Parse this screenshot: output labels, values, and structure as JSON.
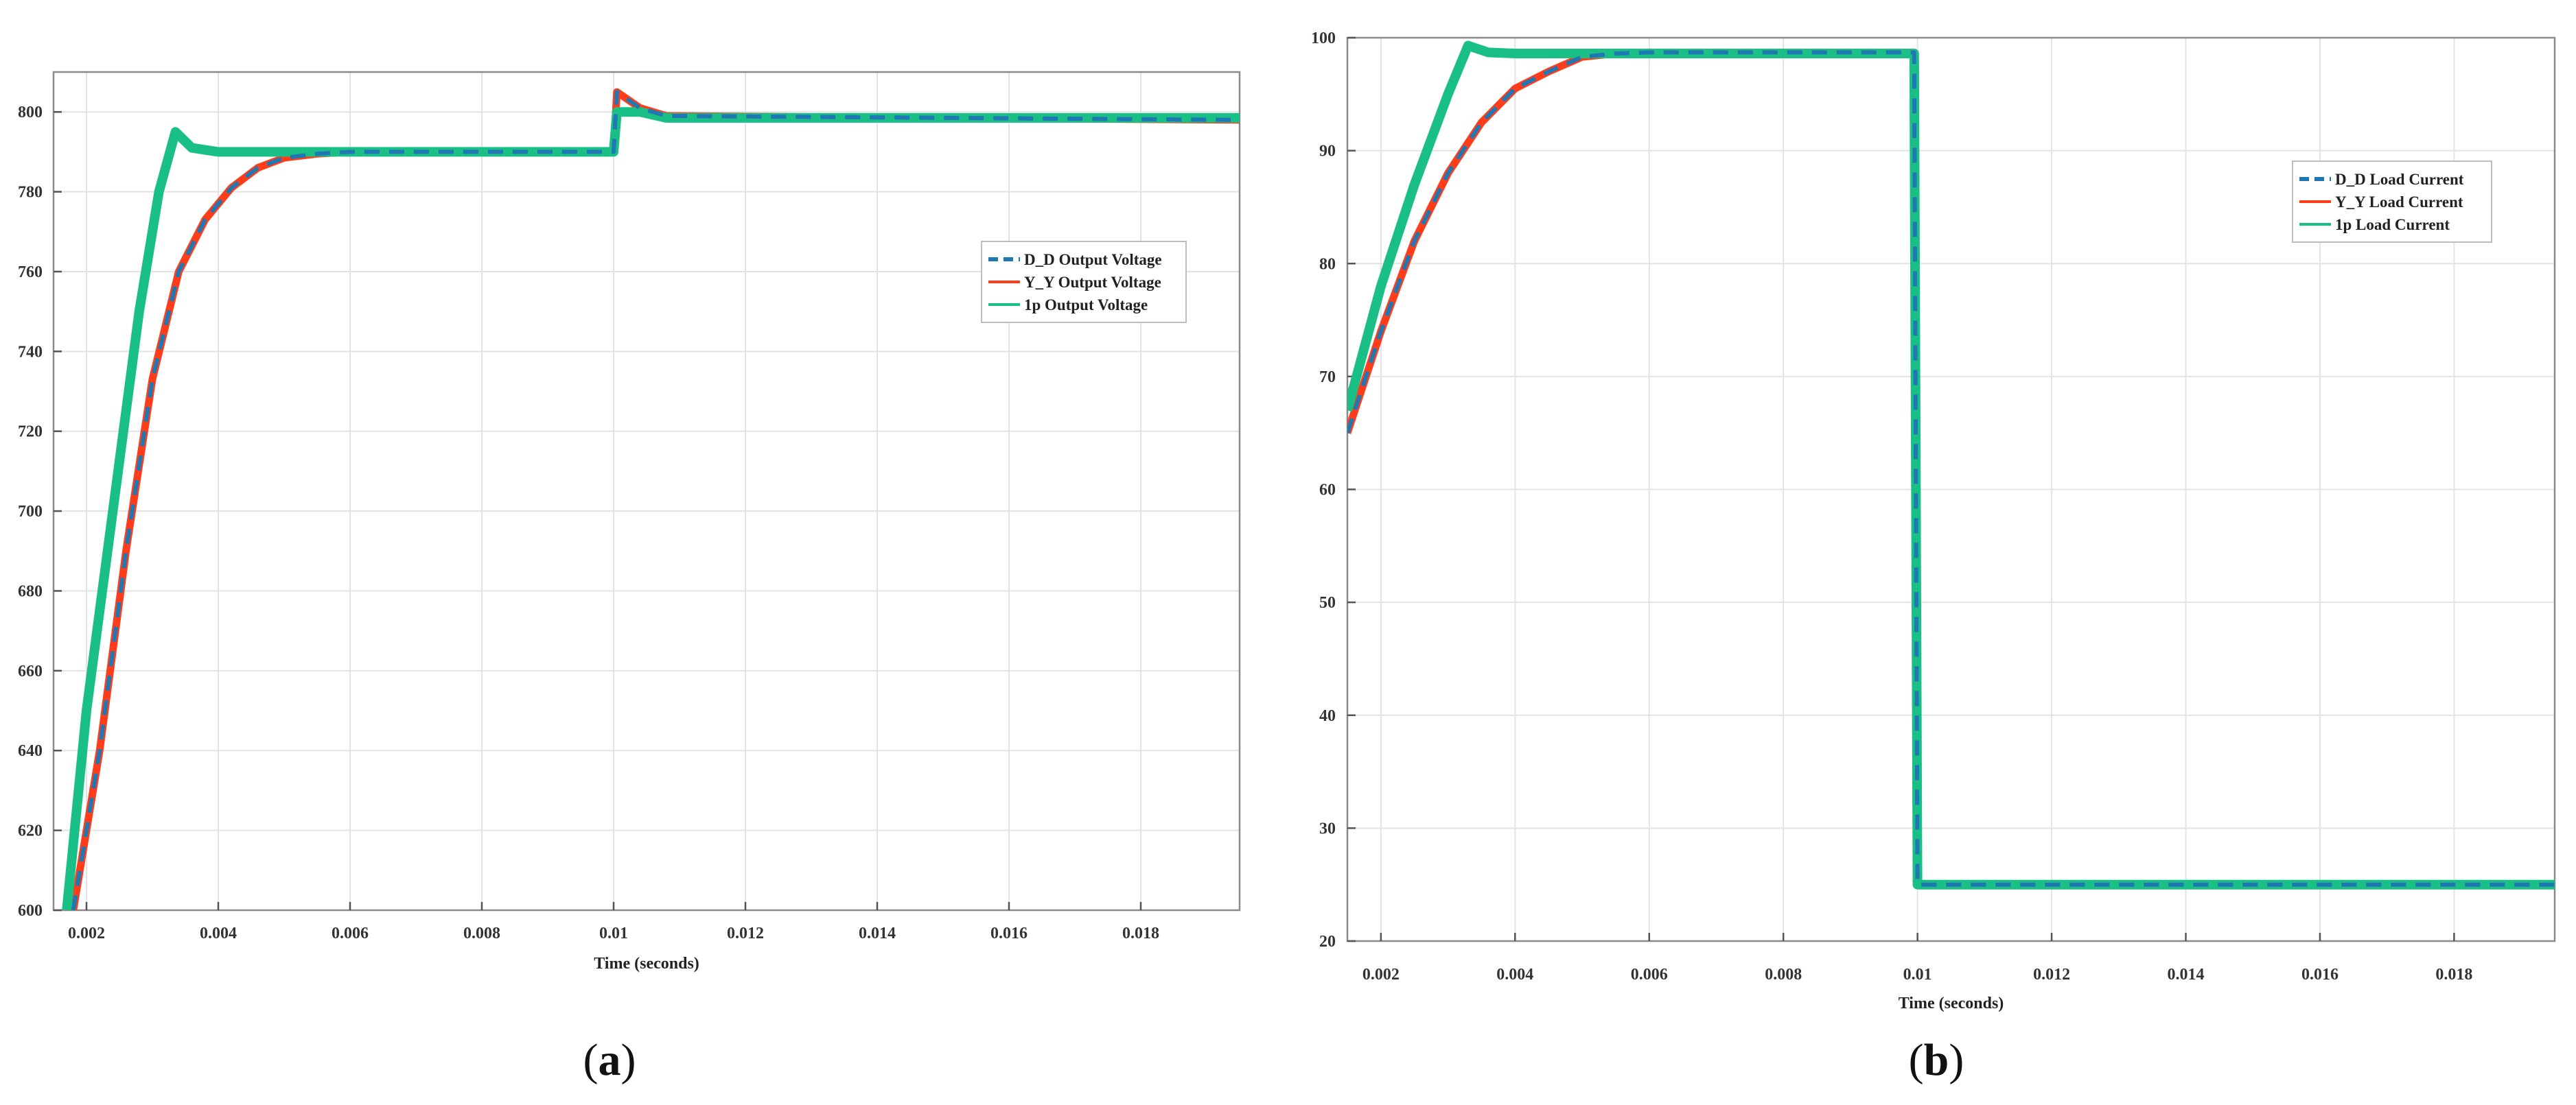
{
  "figure": {
    "label_a": "a",
    "label_b": "b"
  },
  "colors": {
    "dd": "#1f77b4",
    "yy": "#ff3d1a",
    "onep": "#1abf86",
    "grid": "#e3e3e3",
    "axis": "#8a8a8a"
  },
  "chart_data": [
    {
      "type": "line",
      "panel": "a",
      "title": "",
      "xlabel": "Time (seconds)",
      "ylabel": "",
      "xlim": [
        0.0015,
        0.0195
      ],
      "ylim": [
        600,
        810
      ],
      "xticks": [
        0.002,
        0.004,
        0.006,
        0.008,
        0.01,
        0.012,
        0.014,
        0.016,
        0.018
      ],
      "xtick_labels": [
        "0.002",
        "0.004",
        "0.006",
        "0.008",
        "0.01",
        "0.012",
        "0.014",
        "0.016",
        "0.018"
      ],
      "yticks": [
        600,
        620,
        640,
        660,
        680,
        700,
        720,
        740,
        760,
        780,
        800
      ],
      "ytick_labels": [
        "600",
        "620",
        "640",
        "660",
        "680",
        "700",
        "720",
        "740",
        "760",
        "780",
        "800"
      ],
      "grid": true,
      "legend_position": "right",
      "series": [
        {
          "name": "D_D Output Voltage",
          "style": "dashed",
          "points": [
            [
              0.0018,
              600
            ],
            [
              0.0022,
              640
            ],
            [
              0.0026,
              690
            ],
            [
              0.003,
              733
            ],
            [
              0.0034,
              760
            ],
            [
              0.0038,
              773
            ],
            [
              0.0042,
              781
            ],
            [
              0.0046,
              786
            ],
            [
              0.005,
              788.5
            ],
            [
              0.0055,
              789.5
            ],
            [
              0.006,
              790
            ],
            [
              0.008,
              790
            ],
            [
              0.01,
              790
            ],
            [
              0.01005,
              805
            ],
            [
              0.0104,
              801
            ],
            [
              0.0108,
              799
            ],
            [
              0.0195,
              798
            ]
          ]
        },
        {
          "name": "Y_Y Output Voltage",
          "style": "solid",
          "points": [
            [
              0.0018,
              600
            ],
            [
              0.0022,
              640
            ],
            [
              0.0026,
              690
            ],
            [
              0.003,
              733
            ],
            [
              0.0034,
              760
            ],
            [
              0.0038,
              773
            ],
            [
              0.0042,
              781
            ],
            [
              0.0046,
              786
            ],
            [
              0.005,
              788.5
            ],
            [
              0.0055,
              789.5
            ],
            [
              0.006,
              790
            ],
            [
              0.008,
              790
            ],
            [
              0.01,
              790
            ],
            [
              0.01005,
              805
            ],
            [
              0.0104,
              801
            ],
            [
              0.0108,
              799
            ],
            [
              0.0195,
              798
            ]
          ]
        },
        {
          "name": "1p Output Voltage",
          "style": "solid",
          "points": [
            [
              0.0017,
              600
            ],
            [
              0.002,
              650
            ],
            [
              0.0024,
              700
            ],
            [
              0.0028,
              750
            ],
            [
              0.0031,
              780
            ],
            [
              0.00335,
              795
            ],
            [
              0.0036,
              791
            ],
            [
              0.004,
              790
            ],
            [
              0.006,
              790
            ],
            [
              0.008,
              790
            ],
            [
              0.01,
              790
            ],
            [
              0.01005,
              800
            ],
            [
              0.0104,
              800
            ],
            [
              0.0108,
              798.5
            ],
            [
              0.0195,
              798.5
            ]
          ]
        }
      ]
    },
    {
      "type": "line",
      "panel": "b",
      "title": "",
      "xlabel": "Time (seconds)",
      "ylabel": "",
      "xlim": [
        0.0015,
        0.0195
      ],
      "ylim": [
        20,
        100
      ],
      "xticks": [
        0.002,
        0.004,
        0.006,
        0.008,
        0.01,
        0.012,
        0.014,
        0.016,
        0.018
      ],
      "xtick_labels": [
        "0.002",
        "0.004",
        "0.006",
        "0.008",
        "0.01",
        "0.012",
        "0.014",
        "0.016",
        "0.018"
      ],
      "yticks": [
        20,
        30,
        40,
        50,
        60,
        70,
        80,
        90,
        100
      ],
      "ytick_labels": [
        "20",
        "30",
        "40",
        "50",
        "60",
        "70",
        "80",
        "90",
        "100"
      ],
      "grid": true,
      "legend_position": "right",
      "series": [
        {
          "name": "D_D Load Current",
          "style": "dashed",
          "points": [
            [
              0.0015,
              65
            ],
            [
              0.002,
              74
            ],
            [
              0.0025,
              82
            ],
            [
              0.003,
              88
            ],
            [
              0.0035,
              92.5
            ],
            [
              0.004,
              95.5
            ],
            [
              0.0045,
              97
            ],
            [
              0.005,
              98.3
            ],
            [
              0.0055,
              98.6
            ],
            [
              0.006,
              98.7
            ],
            [
              0.00995,
              98.7
            ],
            [
              0.01,
              25
            ],
            [
              0.0195,
              25
            ]
          ]
        },
        {
          "name": "Y_Y Load Current",
          "style": "solid",
          "points": [
            [
              0.0015,
              65
            ],
            [
              0.002,
              74
            ],
            [
              0.0025,
              82
            ],
            [
              0.003,
              88
            ],
            [
              0.0035,
              92.5
            ],
            [
              0.004,
              95.5
            ],
            [
              0.0045,
              97
            ],
            [
              0.005,
              98.3
            ],
            [
              0.0055,
              98.6
            ],
            [
              0.006,
              98.7
            ],
            [
              0.00995,
              98.7
            ],
            [
              0.01,
              25
            ],
            [
              0.0195,
              25
            ]
          ]
        },
        {
          "name": "1p Load Current",
          "style": "solid",
          "points": [
            [
              0.0015,
              67
            ],
            [
              0.002,
              78
            ],
            [
              0.0025,
              87
            ],
            [
              0.003,
              95
            ],
            [
              0.0033,
              99.3
            ],
            [
              0.0036,
              98.7
            ],
            [
              0.004,
              98.6
            ],
            [
              0.00995,
              98.6
            ],
            [
              0.01,
              25
            ],
            [
              0.0195,
              25
            ]
          ]
        }
      ]
    }
  ]
}
